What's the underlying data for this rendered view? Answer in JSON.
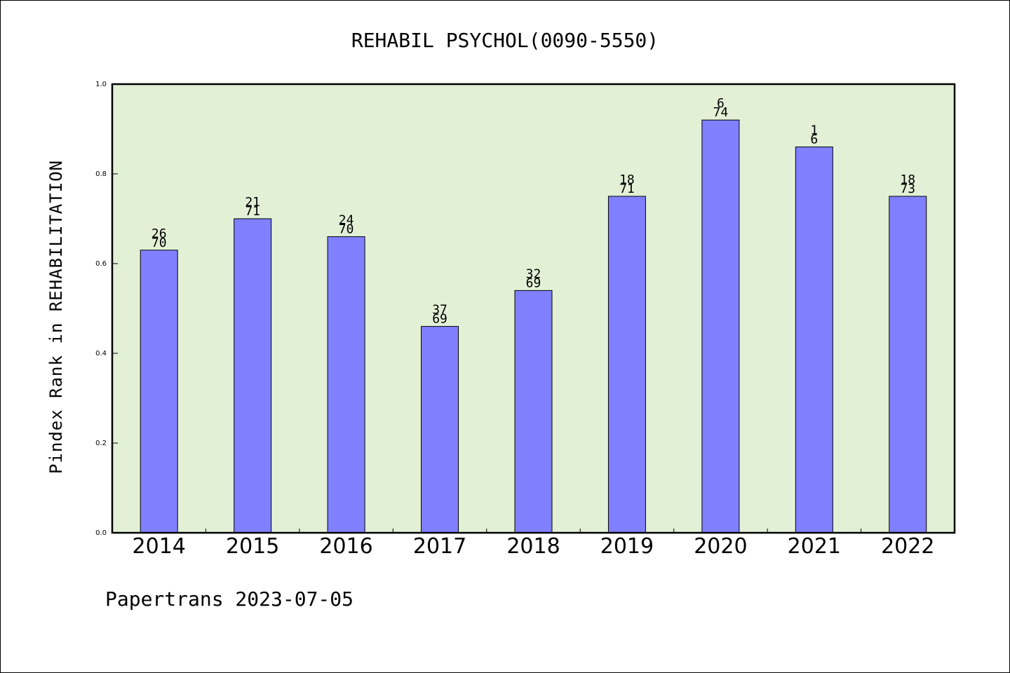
{
  "chart_data": {
    "type": "bar",
    "title": "REHABIL PSYCHOL(0090-5550)",
    "xlabel": "",
    "ylabel": "Pindex Rank in REHABILITATION",
    "ylim": [
      0,
      1.0
    ],
    "yticks": [
      "0.0",
      "0.2",
      "0.4",
      "0.6",
      "0.8",
      "1.0"
    ],
    "categories": [
      "2014",
      "2015",
      "2016",
      "2017",
      "2018",
      "2019",
      "2020",
      "2021",
      "2022"
    ],
    "values": [
      0.63,
      0.7,
      0.66,
      0.46,
      0.54,
      0.75,
      0.92,
      0.86,
      0.75
    ],
    "rank": [
      "26",
      "21",
      "24",
      "37",
      "32",
      "18",
      "6",
      "1",
      "18"
    ],
    "total": [
      "70",
      "71",
      "70",
      "69",
      "69",
      "71",
      "74",
      "6",
      "73"
    ],
    "grid": false,
    "colors": {
      "plot_bg": "#e2f0d6",
      "bar": "#8080ff"
    }
  },
  "footer": "Papertrans 2023-07-05"
}
